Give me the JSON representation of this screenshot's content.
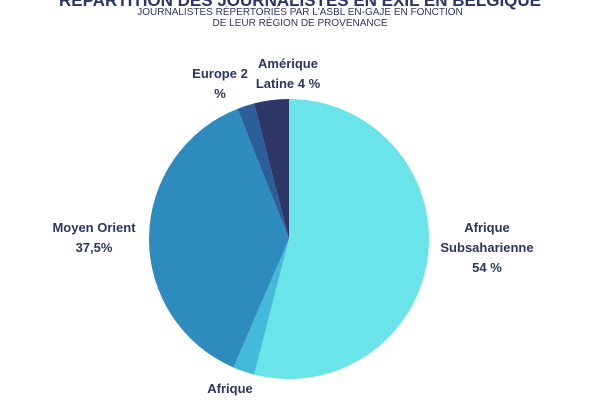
{
  "chart_data": {
    "type": "pie",
    "title": "RÉPARTITION DES JOURNALISTES EN EXIL EN BELGIQUE",
    "subtitle": "JOURNALISTES RÉPERTORIÉS PAR L'ASBL EN-GAJE EN FONCTION DE LEUR RÉGION DE PROVENANCE",
    "categories": [
      "Afrique Subsaharienne",
      "Afrique",
      "Moyen Orient",
      "Europe",
      "Amérique Latine"
    ],
    "values": [
      54,
      2.5,
      37.5,
      2,
      4
    ],
    "value_labels": [
      "54 %",
      null,
      "37,5%",
      "2 %",
      "4 %"
    ],
    "colors": [
      "#6ae4e9",
      "#44b9d9",
      "#2e8bbe",
      "#2c5e99",
      "#2e3567"
    ]
  }
}
